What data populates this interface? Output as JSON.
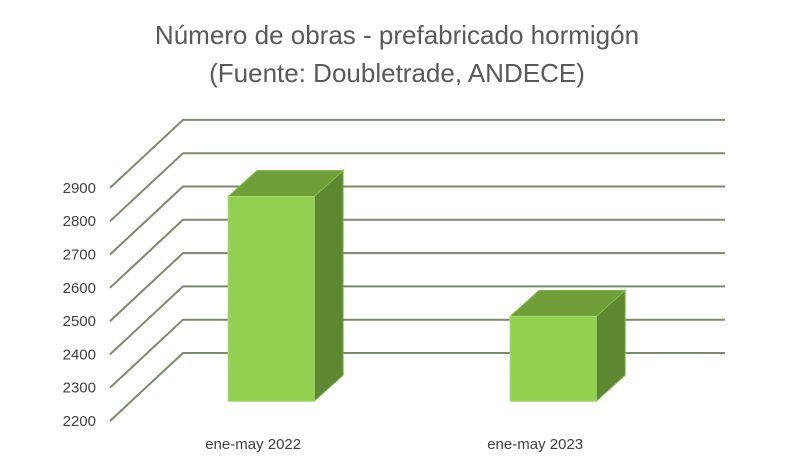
{
  "chart_data": {
    "type": "bar",
    "style": "3d-column",
    "title": "Número de obras - prefabricado hormigón",
    "subtitle": "(Fuente: Doubletrade, ANDECE)",
    "categories": [
      "ene-may 2022",
      "ene-may 2023"
    ],
    "series": [
      {
        "name": "Número de obras",
        "values": [
          2815,
          2455
        ]
      }
    ],
    "ylim": [
      2200,
      2900
    ],
    "yticks": [
      "2200",
      "2300",
      "2400",
      "2500",
      "2600",
      "2700",
      "2800",
      "2900"
    ],
    "grid": true,
    "legend": "none",
    "colors": {
      "front": "#92D050",
      "top": "#6F9D38",
      "side": "#5E8731",
      "grid": "#7A8B6A",
      "text": "#595959"
    }
  }
}
